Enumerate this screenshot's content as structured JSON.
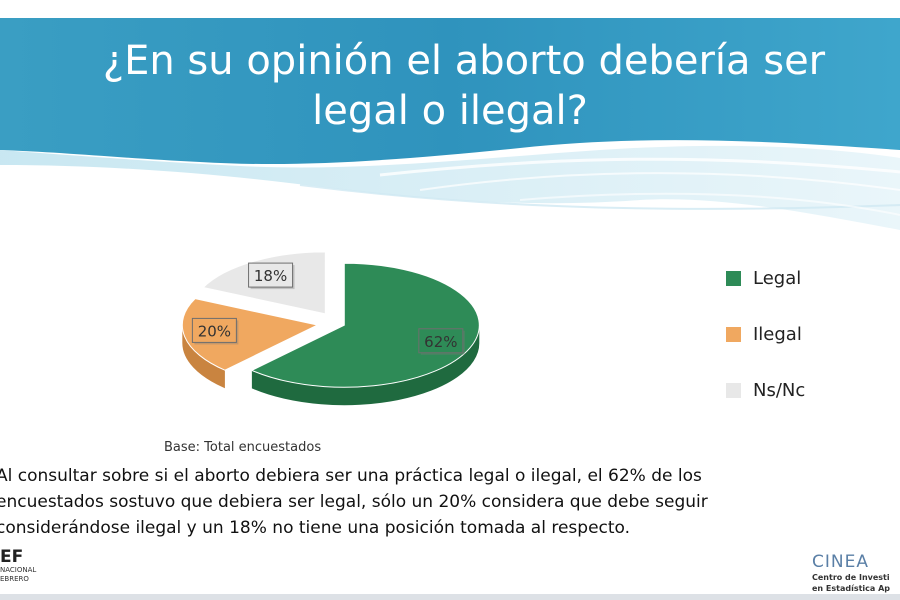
{
  "header": {
    "title_line1": "¿En su opinión el aborto debería ser",
    "title_line2": "legal o ilegal?"
  },
  "chart_data": {
    "type": "pie",
    "title": "¿En su opinión el aborto debería ser legal o ilegal?",
    "categories": [
      "Legal",
      "Ilegal",
      "Ns/Nc"
    ],
    "values": [
      62,
      20,
      18
    ],
    "labels": [
      "62%",
      "20%",
      "18%"
    ],
    "colors": [
      "#2e8b57",
      "#f0a860",
      "#e8e8e8"
    ],
    "side_colors": [
      "#1f6a3f",
      "#c98440",
      "#c8c8c8"
    ],
    "legend_position": "right",
    "exploded": true,
    "three_d": true
  },
  "note": "Base: Total encuestados",
  "body_lines": [
    "Al consultar sobre si el aborto debiera ser una práctica legal o ilegal, el 62% de los",
    "encuestados sostuvo que debiera ser legal, sólo un 20% considera que debe seguir",
    "considerándose ilegal y un 18% no tiene una posición tomada al respecto."
  ],
  "footer": {
    "left_logo": "EF",
    "left_sub1": "NACIONAL",
    "left_sub2": "EBRERO",
    "right_logo": "CINEA",
    "right_sub1": "Centro de Investi",
    "right_sub2": "en Estadística Ap"
  }
}
